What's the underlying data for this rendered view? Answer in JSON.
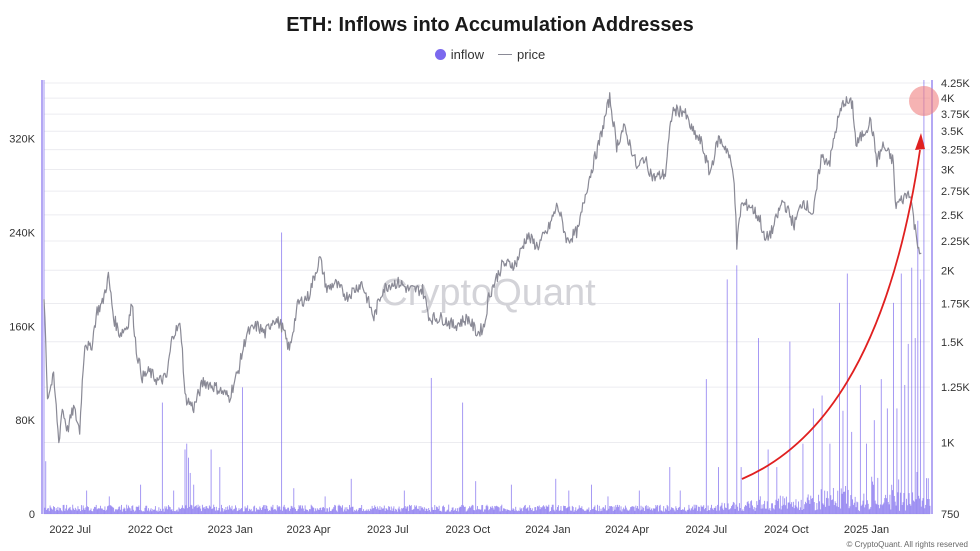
{
  "header": {
    "title": "ETH: Inflows into Accumulation Addresses"
  },
  "legend": {
    "inflow_label": "inflow",
    "price_label": "price"
  },
  "watermark": "CryptoQuant",
  "footer": {
    "copyright": "© CryptoQuant. All rights reserved"
  },
  "colors": {
    "inflow": "#7b68ee",
    "price": "#8a8a96",
    "arrow": "#e02020",
    "highlight": "#f08080"
  },
  "chart_data": {
    "type": "bar",
    "title": "ETH: Inflows into Accumulation Addresses",
    "x_tick_labels": [
      "2022 Jul",
      "2022 Oct",
      "2023 Jan",
      "2023 Apr",
      "2023 Jul",
      "2023 Oct",
      "2024 Jan",
      "2024 Apr",
      "2024 Jul",
      "2024 Oct",
      "2025 Jan"
    ],
    "x_range": [
      "2022-06-01",
      "2025-03-15"
    ],
    "left_axis": {
      "series": "inflow",
      "ylim": [
        0,
        370000
      ],
      "ticks": [
        0,
        80000,
        160000,
        240000,
        320000
      ],
      "tick_labels": [
        "0",
        "80K",
        "160K",
        "240K",
        "320K"
      ]
    },
    "right_axis": {
      "series": "price",
      "scale": "log",
      "ylim": [
        750,
        4250
      ],
      "ticks": [
        750,
        1000,
        1250,
        1500,
        1750,
        2000,
        2250,
        2500,
        2750,
        3000,
        3250,
        3500,
        3750,
        4000,
        4250
      ],
      "tick_labels": [
        "750",
        "1K",
        "1.25K",
        "1.5K",
        "1.75K",
        "2K",
        "2.25K",
        "2.5K",
        "2.75K",
        "3K",
        "3.25K",
        "3.5K",
        "3.75K",
        "4K",
        "4.25K"
      ]
    },
    "grid": true,
    "legend_position": "top-center",
    "series": [
      {
        "name": "price",
        "kind": "line",
        "points": [
          [
            "2022-06-01",
            1800
          ],
          [
            "2022-06-05",
            1200
          ],
          [
            "2022-06-12",
            1300
          ],
          [
            "2022-06-18",
            1000
          ],
          [
            "2022-06-22",
            1150
          ],
          [
            "2022-06-28",
            1050
          ],
          [
            "2022-07-05",
            1150
          ],
          [
            "2022-07-12",
            1050
          ],
          [
            "2022-07-18",
            1500
          ],
          [
            "2022-07-25",
            1450
          ],
          [
            "2022-08-01",
            1700
          ],
          [
            "2022-08-07",
            1750
          ],
          [
            "2022-08-14",
            1950
          ],
          [
            "2022-08-20",
            1650
          ],
          [
            "2022-08-27",
            1550
          ],
          [
            "2022-09-05",
            1600
          ],
          [
            "2022-09-10",
            1750
          ],
          [
            "2022-09-15",
            1450
          ],
          [
            "2022-09-22",
            1300
          ],
          [
            "2022-09-30",
            1330
          ],
          [
            "2022-10-10",
            1280
          ],
          [
            "2022-10-20",
            1300
          ],
          [
            "2022-10-27",
            1550
          ],
          [
            "2022-11-05",
            1600
          ],
          [
            "2022-11-10",
            1200
          ],
          [
            "2022-11-20",
            1150
          ],
          [
            "2022-12-01",
            1280
          ],
          [
            "2022-12-15",
            1250
          ],
          [
            "2022-12-31",
            1200
          ],
          [
            "2023-01-10",
            1330
          ],
          [
            "2023-01-20",
            1550
          ],
          [
            "2023-02-01",
            1600
          ],
          [
            "2023-02-10",
            1550
          ],
          [
            "2023-02-20",
            1650
          ],
          [
            "2023-03-01",
            1600
          ],
          [
            "2023-03-10",
            1450
          ],
          [
            "2023-03-20",
            1750
          ],
          [
            "2023-04-01",
            1800
          ],
          [
            "2023-04-14",
            2100
          ],
          [
            "2023-04-22",
            1850
          ],
          [
            "2023-05-01",
            1900
          ],
          [
            "2023-05-15",
            1800
          ],
          [
            "2023-06-01",
            1900
          ],
          [
            "2023-06-15",
            1650
          ],
          [
            "2023-06-25",
            1850
          ],
          [
            "2023-07-05",
            1900
          ],
          [
            "2023-07-15",
            1900
          ],
          [
            "2023-07-25",
            1850
          ],
          [
            "2023-08-10",
            1850
          ],
          [
            "2023-08-18",
            1650
          ],
          [
            "2023-09-01",
            1650
          ],
          [
            "2023-09-15",
            1600
          ],
          [
            "2023-10-01",
            1650
          ],
          [
            "2023-10-12",
            1550
          ],
          [
            "2023-10-20",
            1600
          ],
          [
            "2023-10-25",
            1800
          ],
          [
            "2023-11-10",
            2050
          ],
          [
            "2023-11-25",
            2050
          ],
          [
            "2023-12-08",
            2300
          ],
          [
            "2023-12-20",
            2200
          ],
          [
            "2024-01-01",
            2350
          ],
          [
            "2024-01-12",
            2600
          ],
          [
            "2024-01-23",
            2250
          ],
          [
            "2024-02-05",
            2350
          ],
          [
            "2024-02-15",
            2800
          ],
          [
            "2024-02-28",
            3300
          ],
          [
            "2024-03-05",
            3600
          ],
          [
            "2024-03-12",
            4000
          ],
          [
            "2024-03-20",
            3300
          ],
          [
            "2024-03-28",
            3550
          ],
          [
            "2024-04-05",
            3300
          ],
          [
            "2024-04-13",
            3000
          ],
          [
            "2024-04-20",
            3150
          ],
          [
            "2024-05-01",
            2900
          ],
          [
            "2024-05-15",
            2950
          ],
          [
            "2024-05-23",
            3800
          ],
          [
            "2024-06-05",
            3800
          ],
          [
            "2024-06-15",
            3500
          ],
          [
            "2024-06-25",
            3350
          ],
          [
            "2024-07-05",
            2950
          ],
          [
            "2024-07-15",
            3400
          ],
          [
            "2024-07-25",
            3250
          ],
          [
            "2024-08-02",
            2900
          ],
          [
            "2024-08-05",
            2200
          ],
          [
            "2024-08-10",
            2600
          ],
          [
            "2024-08-20",
            2600
          ],
          [
            "2024-09-01",
            2450
          ],
          [
            "2024-09-06",
            2250
          ],
          [
            "2024-09-15",
            2350
          ],
          [
            "2024-09-27",
            2650
          ],
          [
            "2024-10-10",
            2400
          ],
          [
            "2024-10-20",
            2650
          ],
          [
            "2024-11-01",
            2500
          ],
          [
            "2024-11-10",
            3150
          ],
          [
            "2024-11-20",
            3100
          ],
          [
            "2024-11-28",
            3600
          ],
          [
            "2024-12-06",
            3950
          ],
          [
            "2024-12-16",
            3900
          ],
          [
            "2024-12-20",
            3300
          ],
          [
            "2025-01-06",
            3650
          ],
          [
            "2025-01-13",
            3100
          ],
          [
            "2025-01-20",
            3300
          ],
          [
            "2025-02-01",
            3100
          ],
          [
            "2025-02-03",
            2600
          ],
          [
            "2025-02-10",
            2650
          ],
          [
            "2025-02-20",
            2750
          ],
          [
            "2025-02-25",
            2400
          ],
          [
            "2025-03-02",
            2200
          ],
          [
            "2025-03-05",
            2100
          ]
        ]
      },
      {
        "name": "inflow",
        "kind": "bar",
        "spikes": [
          [
            "2022-06-01",
            370000
          ],
          [
            "2022-06-03",
            45000
          ],
          [
            "2022-07-20",
            20000
          ],
          [
            "2022-08-15",
            15000
          ],
          [
            "2022-09-20",
            25000
          ],
          [
            "2022-10-15",
            95000
          ],
          [
            "2022-10-28",
            20000
          ],
          [
            "2022-11-10",
            55000
          ],
          [
            "2022-11-12",
            60000
          ],
          [
            "2022-11-14",
            48000
          ],
          [
            "2022-11-16",
            35000
          ],
          [
            "2022-11-20",
            25000
          ],
          [
            "2022-12-10",
            55000
          ],
          [
            "2022-12-20",
            40000
          ],
          [
            "2023-01-15",
            108000
          ],
          [
            "2023-03-01",
            240000
          ],
          [
            "2023-03-15",
            22000
          ],
          [
            "2023-04-20",
            15000
          ],
          [
            "2023-05-20",
            30000
          ],
          [
            "2023-07-20",
            20000
          ],
          [
            "2023-08-20",
            116000
          ],
          [
            "2023-09-25",
            95000
          ],
          [
            "2023-10-10",
            28000
          ],
          [
            "2023-11-20",
            25000
          ],
          [
            "2024-01-10",
            30000
          ],
          [
            "2024-01-25",
            20000
          ],
          [
            "2024-02-20",
            25000
          ],
          [
            "2024-03-10",
            15000
          ],
          [
            "2024-04-15",
            20000
          ],
          [
            "2024-05-20",
            40000
          ],
          [
            "2024-06-01",
            20000
          ],
          [
            "2024-07-01",
            115000
          ],
          [
            "2024-07-15",
            40000
          ],
          [
            "2024-07-25",
            200000
          ],
          [
            "2024-08-05",
            212000
          ],
          [
            "2024-08-10",
            40000
          ],
          [
            "2024-08-30",
            150000
          ],
          [
            "2024-09-10",
            55000
          ],
          [
            "2024-09-20",
            40000
          ],
          [
            "2024-10-05",
            147000
          ],
          [
            "2024-10-20",
            60000
          ],
          [
            "2024-11-01",
            90000
          ],
          [
            "2024-11-11",
            101000
          ],
          [
            "2024-11-20",
            60000
          ],
          [
            "2024-12-01",
            180000
          ],
          [
            "2024-12-05",
            88000
          ],
          [
            "2024-12-10",
            205000
          ],
          [
            "2024-12-15",
            70000
          ],
          [
            "2024-12-25",
            110000
          ],
          [
            "2025-01-01",
            60000
          ],
          [
            "2025-01-10",
            80000
          ],
          [
            "2025-01-18",
            115000
          ],
          [
            "2025-01-25",
            90000
          ],
          [
            "2025-02-01",
            180000
          ],
          [
            "2025-02-05",
            90000
          ],
          [
            "2025-02-10",
            205000
          ],
          [
            "2025-02-14",
            110000
          ],
          [
            "2025-02-18",
            145000
          ],
          [
            "2025-02-22",
            210000
          ],
          [
            "2025-02-26",
            150000
          ],
          [
            "2025-03-01",
            250000
          ],
          [
            "2025-03-04",
            200000
          ],
          [
            "2025-03-08",
            370000
          ]
        ]
      }
    ]
  }
}
